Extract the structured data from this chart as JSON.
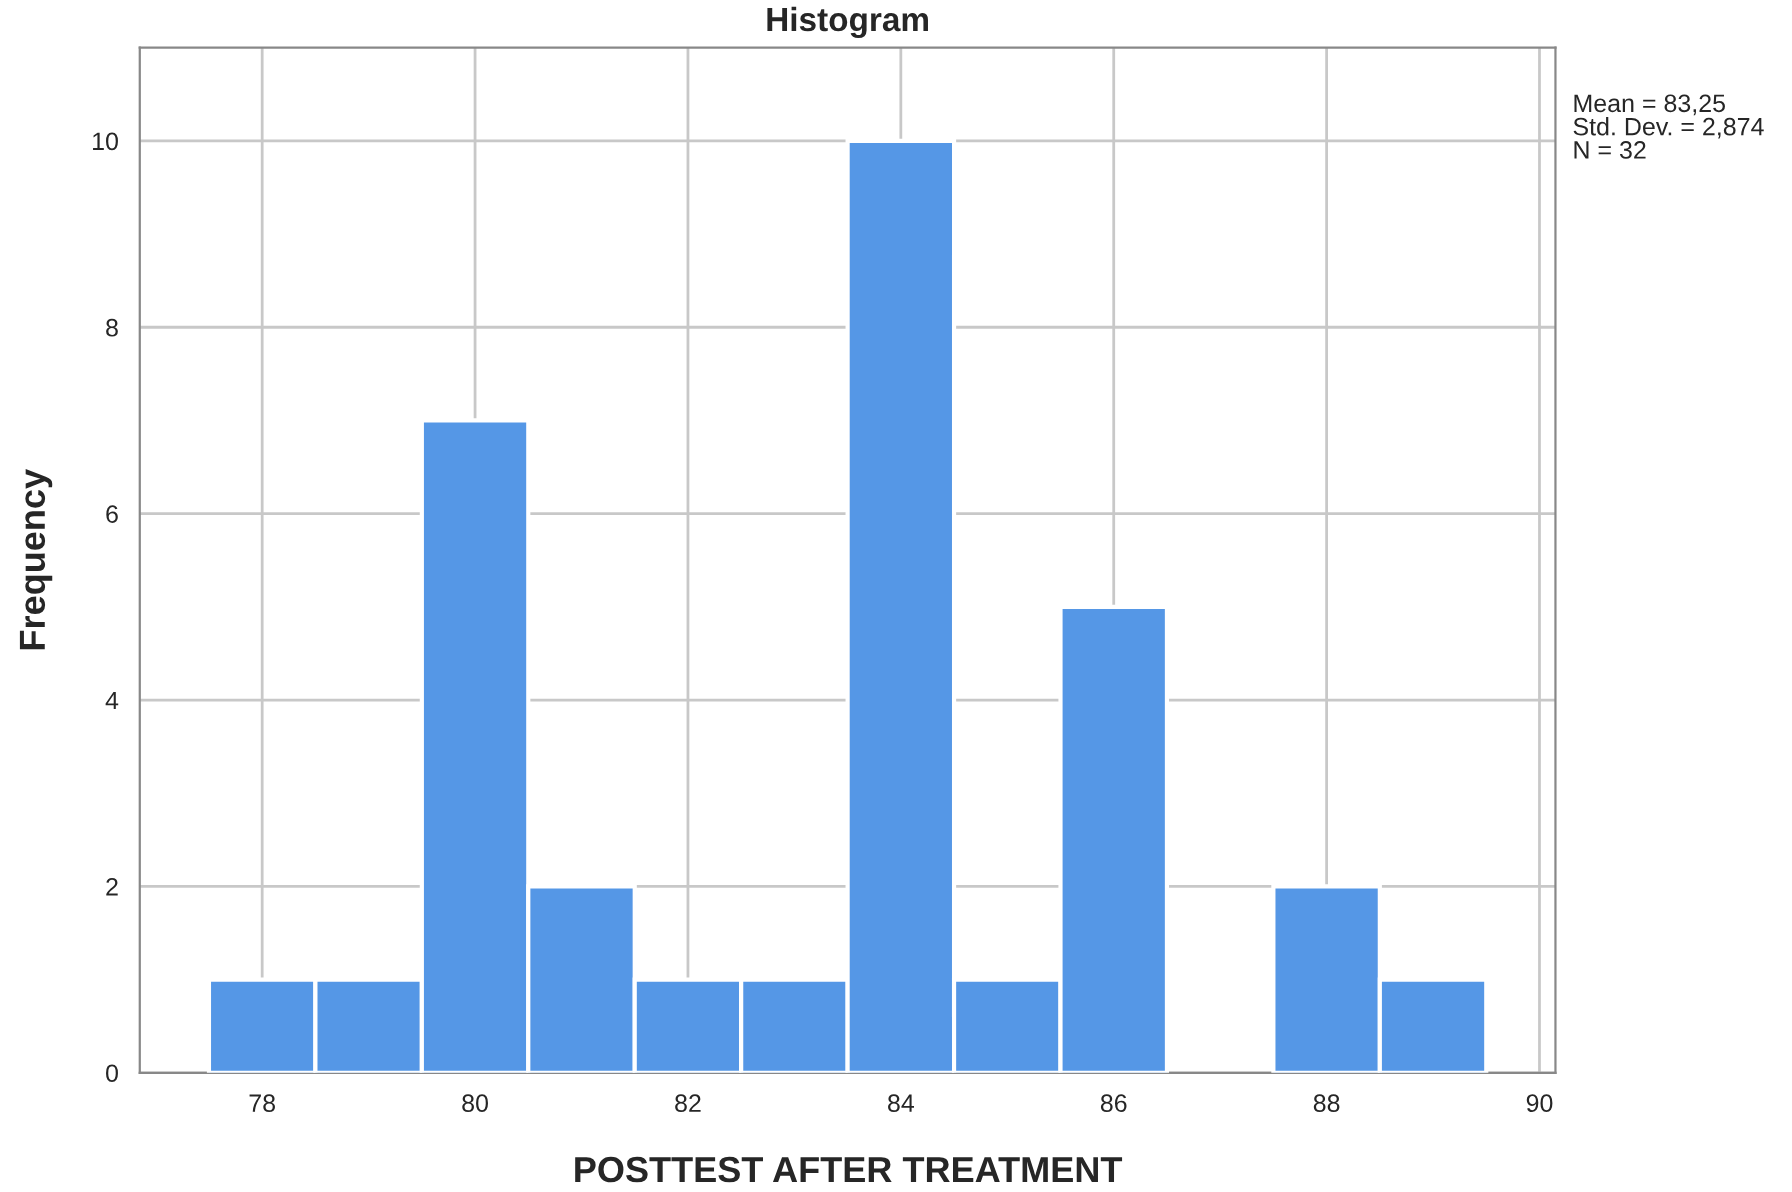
{
  "chart_data": {
    "type": "histogram",
    "title": "Histogram",
    "xlabel": "POSTTEST AFTER TREATMENT",
    "ylabel": "Frequency",
    "bins": [
      77.5,
      78.5,
      79.5,
      80.5,
      81.5,
      82.5,
      83.5,
      84.5,
      85.5,
      86.5,
      87.5,
      88.5,
      89.5
    ],
    "values": [
      1,
      1,
      7,
      2,
      1,
      1,
      10,
      1,
      5,
      0,
      2,
      1
    ],
    "color": "#5597e6",
    "xlim": [
      76.85,
      90.15
    ],
    "xticks": [
      78,
      80,
      82,
      84,
      86,
      88,
      90
    ],
    "ylim": [
      0,
      11
    ],
    "yticks": [
      0,
      2,
      4,
      6,
      8,
      10
    ],
    "grid": true,
    "legend": false,
    "annotations": [
      "Mean = 83,25",
      "Std. Dev. = 2,874",
      "N = 32"
    ]
  }
}
